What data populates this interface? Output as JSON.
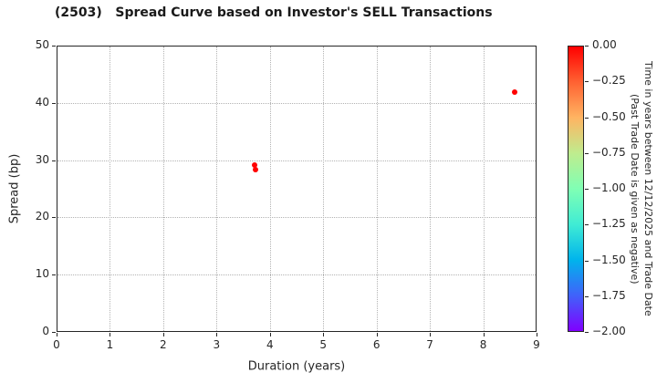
{
  "title": "(2503)   Spread Curve based on Investor's SELL Transactions",
  "chart_data": {
    "type": "scatter",
    "title": "(2503)   Spread Curve based on Investor's SELL Transactions",
    "xlabel": "Duration (years)",
    "ylabel": "Spread (bp)",
    "xlim": [
      0,
      9
    ],
    "ylim": [
      0,
      50
    ],
    "xticks": [
      0,
      1,
      2,
      3,
      4,
      5,
      6,
      7,
      8,
      9
    ],
    "yticks": [
      0,
      10,
      20,
      30,
      40,
      50
    ],
    "grid": true,
    "legend_position": "none",
    "series": [
      {
        "name": "Investor SELL transactions",
        "marker_color": "#ff0000",
        "points": [
          {
            "duration": 3.71,
            "spread": 29.1,
            "time_value": 0.0
          },
          {
            "duration": 3.73,
            "spread": 28.4,
            "time_value": 0.0
          },
          {
            "duration": 8.59,
            "spread": 41.9,
            "time_value": 0.0
          }
        ]
      }
    ],
    "colorbar": {
      "title_line1": "Time in years between 12/12/2025 and Trade Date",
      "title_line2": "(Past Trade Date is given as negative)",
      "vmax": 0.0,
      "vmin": -2.0,
      "tick_labels": [
        "0.00",
        "−0.25",
        "−0.50",
        "−0.75",
        "−1.00",
        "−1.25",
        "−1.50",
        "−1.75",
        "−2.00"
      ],
      "colormap": "rainbow",
      "gradient_top_to_bottom": [
        "#ff0000",
        "#ff6232",
        "#ffb462",
        "#bfec8e",
        "#80ffb4",
        "#40ecd4",
        "#00b4ec",
        "#4062fa",
        "#8000ff"
      ]
    }
  }
}
